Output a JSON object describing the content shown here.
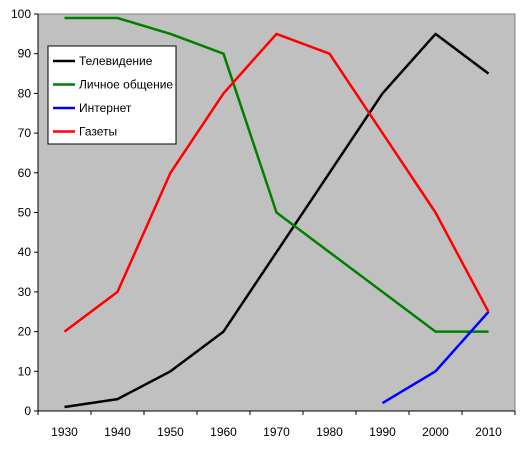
{
  "chart_data": {
    "type": "line",
    "title": "",
    "xlabel": "",
    "ylabel": "",
    "x": [
      "1930",
      "1940",
      "1950",
      "1960",
      "1970",
      "1980",
      "1990",
      "2000",
      "2010"
    ],
    "ylim": [
      0,
      100
    ],
    "yticks": [
      0,
      10,
      20,
      30,
      40,
      50,
      60,
      70,
      80,
      90,
      100
    ],
    "grid": false,
    "plot_background": "#c0c0c0",
    "legend": {
      "placement": "top-left"
    },
    "series": [
      {
        "name": "Телевидение",
        "color": "#000000",
        "values": [
          1,
          3,
          10,
          20,
          40,
          60,
          80,
          95,
          85
        ]
      },
      {
        "name": "Личное общение",
        "color": "#008000",
        "values": [
          99,
          99,
          95,
          90,
          50,
          40,
          30,
          20,
          20
        ]
      },
      {
        "name": "Интернет",
        "color": "#0000ff",
        "values": [
          null,
          null,
          null,
          null,
          null,
          null,
          2,
          10,
          25
        ]
      },
      {
        "name": "Газеты",
        "color": "#ff0000",
        "values": [
          20,
          30,
          60,
          80,
          95,
          90,
          70,
          50,
          25
        ]
      }
    ]
  }
}
